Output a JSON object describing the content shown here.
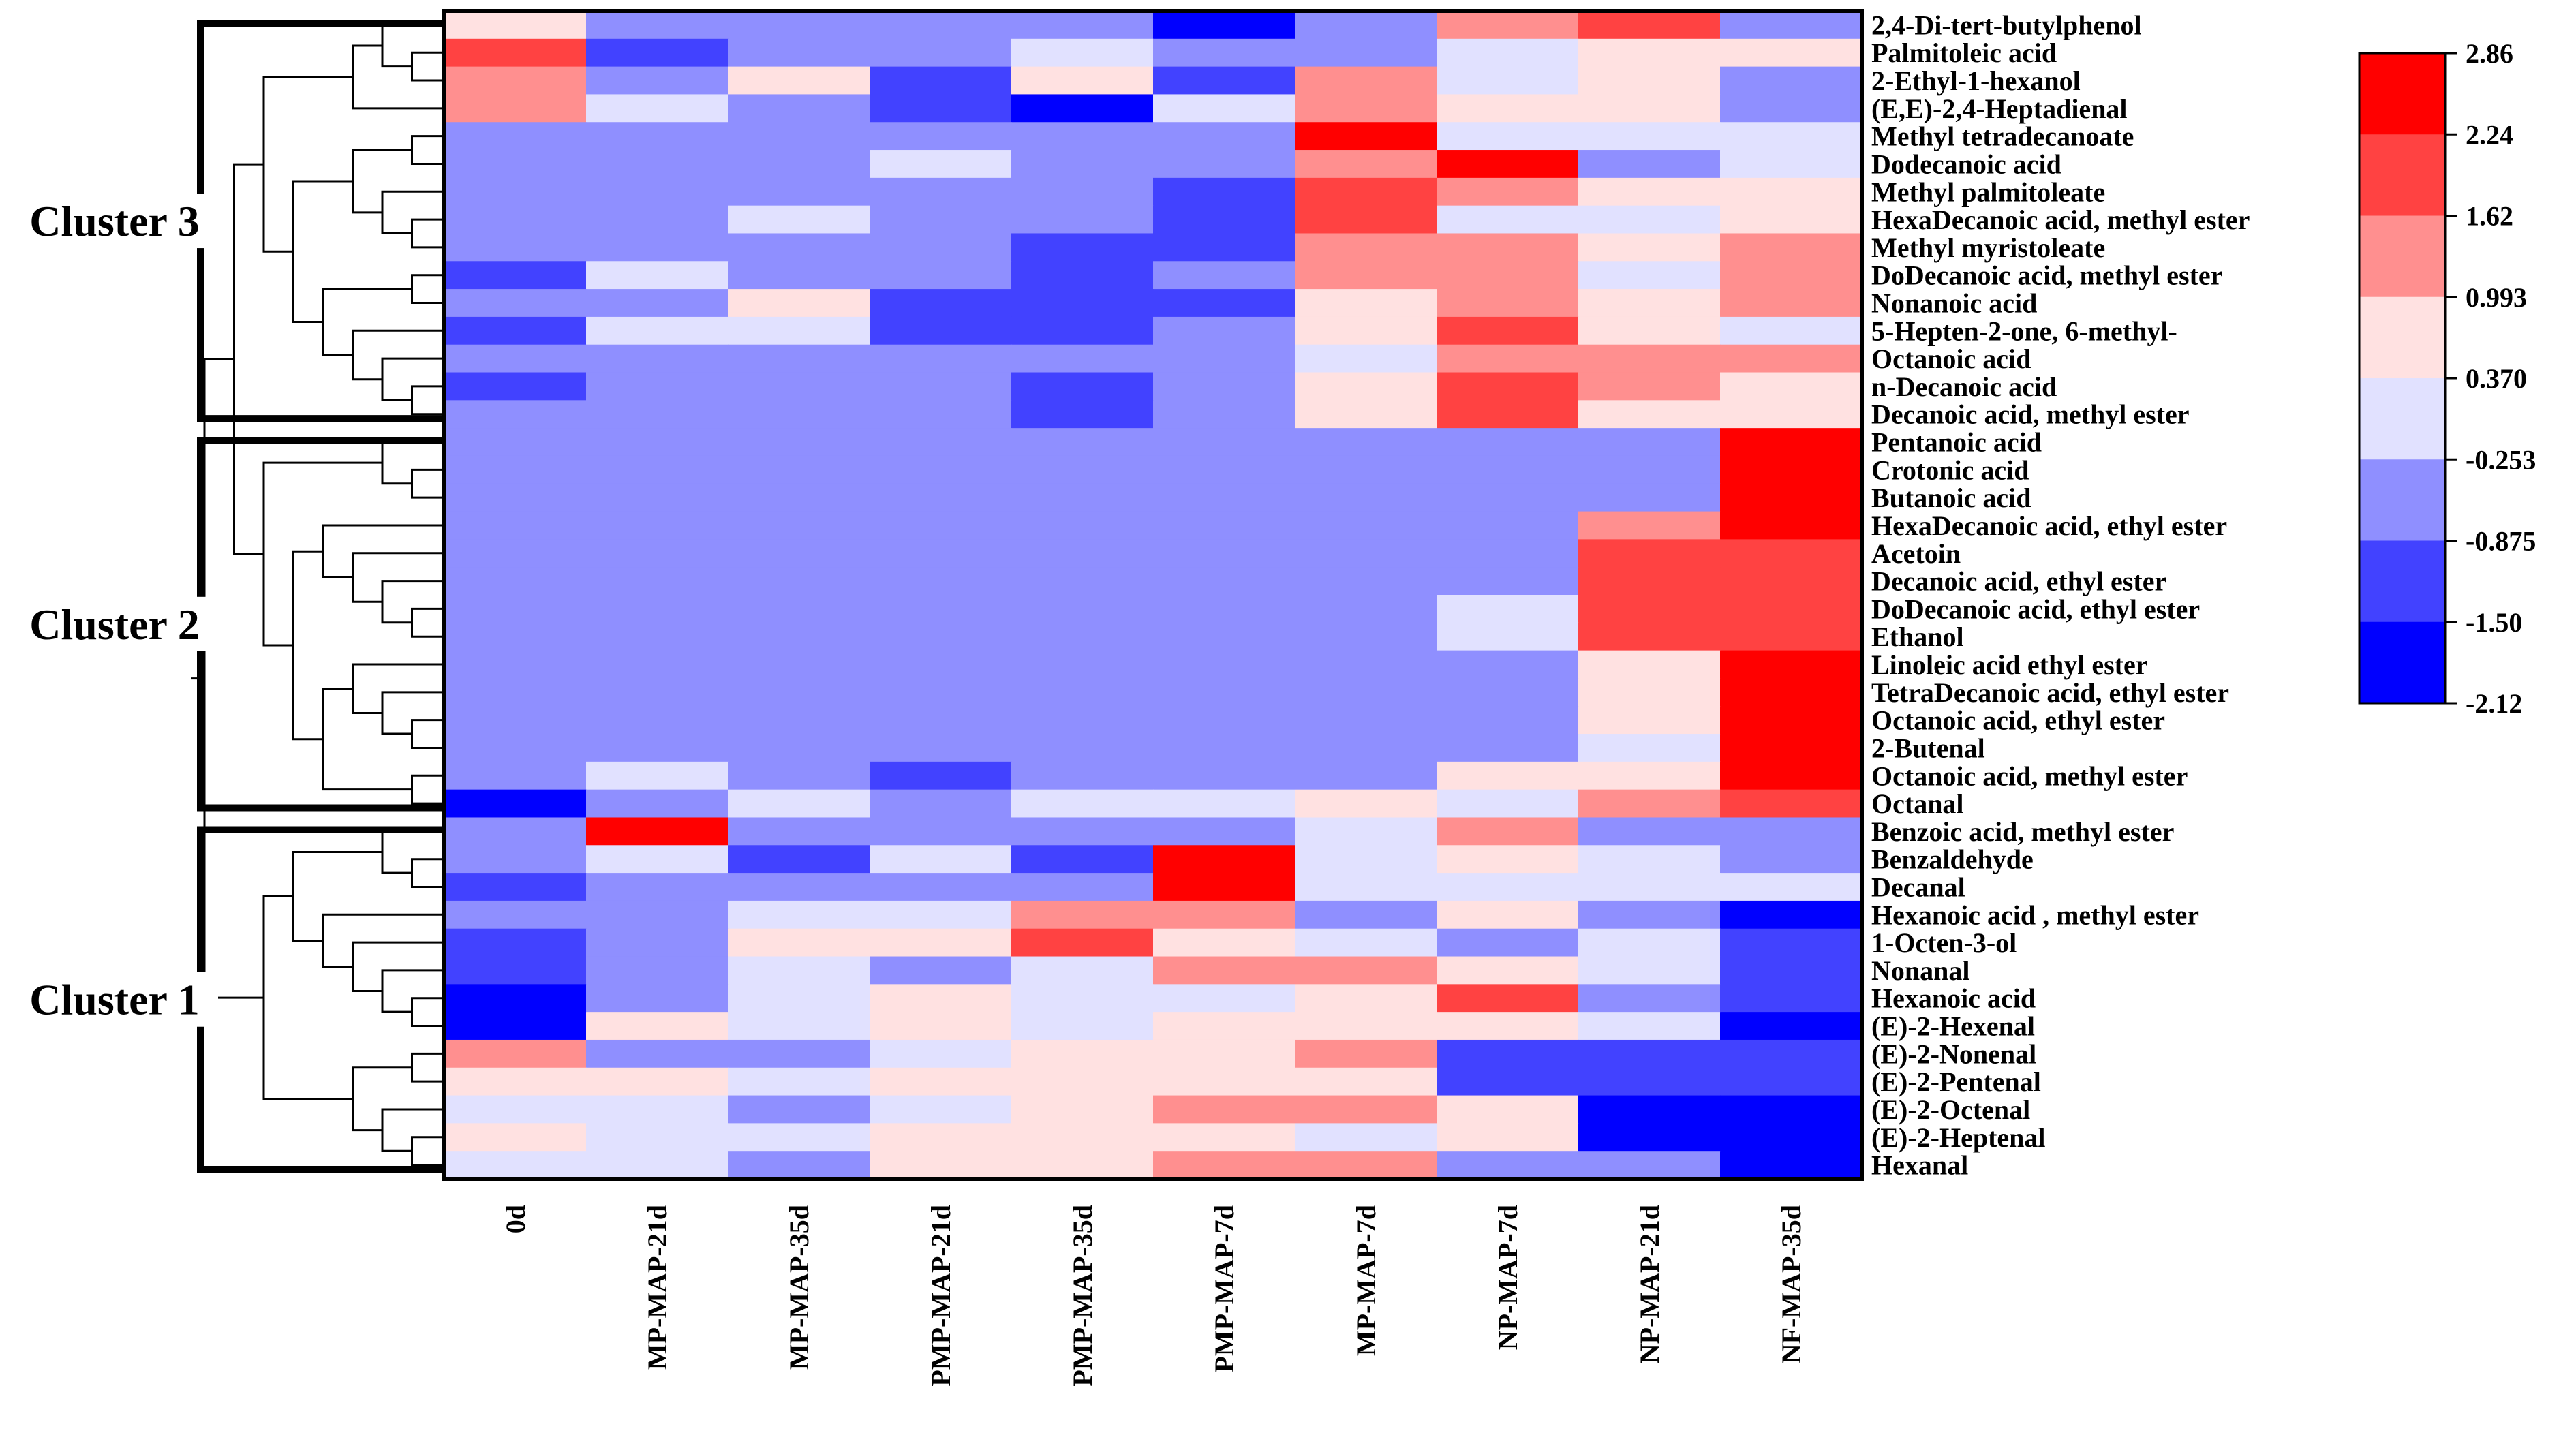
{
  "chart_data": {
    "type": "heatmap",
    "title": "",
    "columns": [
      "0d",
      "MP-MAP-21d",
      "MP-MAP-35d",
      "PMP-MAP-21d",
      "PMP-MAP-35d",
      "PMP-MAP-7d",
      "MP-MAP-7d",
      "NP-MAP-7d",
      "NP-MAP-21d",
      "NF-MAP-35d"
    ],
    "rows": [
      "2,4-Di-tert-butylphenol",
      "Palmitoleic acid",
      "2-Ethyl-1-hexanol",
      "(E,E)-2,4-Heptadienal",
      "Methyl tetradecanoate",
      "Dodecanoic acid",
      "Methyl palmitoleate",
      "HexaDecanoic acid, methyl ester",
      "Methyl myristoleate",
      "DoDecanoic acid, methyl ester",
      "Nonanoic acid",
      "5-Hepten-2-one, 6-methyl-",
      "Octanoic acid",
      "n-Decanoic acid",
      "Decanoic acid, methyl ester",
      "Pentanoic acid",
      "Crotonic acid",
      "Butanoic acid",
      "HexaDecanoic acid, ethyl ester",
      "Acetoin",
      "Decanoic acid, ethyl ester",
      "DoDecanoic acid, ethyl ester",
      "Ethanol",
      "Linoleic acid ethyl ester",
      "TetraDecanoic acid, ethyl ester",
      "Octanoic acid, ethyl ester",
      "2-Butenal",
      "Octanoic acid, methyl ester",
      "Octanal",
      "Benzoic acid, methyl ester",
      "Benzaldehyde",
      "Decanal",
      "Hexanoic acid , methyl ester",
      "1-Octen-3-ol",
      "Nonanal",
      "Hexanoic acid",
      "(E)-2-Hexenal",
      "(E)-2-Nonenal",
      "(E)-2-Pentenal",
      "(E)-2-Octenal",
      "(E)-2-Heptenal",
      "Hexanal"
    ],
    "values": [
      [
        0.68,
        -0.56,
        -0.56,
        -0.56,
        -0.56,
        -1.8,
        -0.56,
        1.3,
        1.9,
        -0.56
      ],
      [
        1.9,
        -1.2,
        -0.56,
        -0.56,
        0.06,
        -0.56,
        -0.56,
        0.06,
        0.68,
        0.68
      ],
      [
        1.3,
        -0.56,
        0.68,
        -1.2,
        0.68,
        -1.2,
        1.3,
        0.06,
        0.68,
        -0.56
      ],
      [
        1.3,
        0.06,
        -0.56,
        -1.2,
        -1.8,
        0.06,
        1.3,
        0.68,
        0.68,
        -0.56
      ],
      [
        -0.56,
        -0.56,
        -0.56,
        -0.56,
        -0.56,
        -0.56,
        2.5,
        0.06,
        0.06,
        0.06
      ],
      [
        -0.56,
        -0.56,
        -0.56,
        0.06,
        -0.56,
        -0.56,
        1.3,
        2.5,
        -0.56,
        0.06
      ],
      [
        -0.56,
        -0.56,
        -0.56,
        -0.56,
        -0.56,
        -1.2,
        1.9,
        1.3,
        0.68,
        0.68
      ],
      [
        -0.56,
        -0.56,
        0.06,
        -0.56,
        -0.56,
        -1.2,
        1.9,
        0.06,
        0.06,
        0.68
      ],
      [
        -0.56,
        -0.56,
        -0.56,
        -0.56,
        -1.2,
        -1.2,
        1.3,
        1.3,
        0.68,
        1.3
      ],
      [
        -1.2,
        0.06,
        -0.56,
        -0.56,
        -1.2,
        -0.56,
        1.3,
        1.3,
        0.06,
        1.3
      ],
      [
        -0.56,
        -0.56,
        0.68,
        -1.2,
        -1.2,
        -1.2,
        0.68,
        1.3,
        0.68,
        1.3
      ],
      [
        -1.2,
        0.06,
        0.06,
        -1.2,
        -1.2,
        -0.56,
        0.68,
        1.9,
        0.68,
        0.06
      ],
      [
        -0.56,
        -0.56,
        -0.56,
        -0.56,
        -0.56,
        -0.56,
        0.06,
        1.3,
        1.3,
        1.3
      ],
      [
        -1.2,
        -0.56,
        -0.56,
        -0.56,
        -1.2,
        -0.56,
        0.68,
        1.9,
        1.3,
        0.68
      ],
      [
        -0.56,
        -0.56,
        -0.56,
        -0.56,
        -1.2,
        -0.56,
        0.68,
        1.9,
        0.68,
        0.68
      ],
      [
        -0.56,
        -0.56,
        -0.56,
        -0.56,
        -0.56,
        -0.56,
        -0.56,
        -0.56,
        -0.56,
        2.5
      ],
      [
        -0.56,
        -0.56,
        -0.56,
        -0.56,
        -0.56,
        -0.56,
        -0.56,
        -0.56,
        -0.56,
        2.5
      ],
      [
        -0.56,
        -0.56,
        -0.56,
        -0.56,
        -0.56,
        -0.56,
        -0.56,
        -0.56,
        -0.56,
        2.5
      ],
      [
        -0.56,
        -0.56,
        -0.56,
        -0.56,
        -0.56,
        -0.56,
        -0.56,
        -0.56,
        1.3,
        2.5
      ],
      [
        -0.56,
        -0.56,
        -0.56,
        -0.56,
        -0.56,
        -0.56,
        -0.56,
        -0.56,
        1.9,
        1.9
      ],
      [
        -0.56,
        -0.56,
        -0.56,
        -0.56,
        -0.56,
        -0.56,
        -0.56,
        -0.56,
        1.9,
        1.9
      ],
      [
        -0.56,
        -0.56,
        -0.56,
        -0.56,
        -0.56,
        -0.56,
        -0.56,
        0.06,
        1.9,
        1.9
      ],
      [
        -0.56,
        -0.56,
        -0.56,
        -0.56,
        -0.56,
        -0.56,
        -0.56,
        0.06,
        1.9,
        1.9
      ],
      [
        -0.56,
        -0.56,
        -0.56,
        -0.56,
        -0.56,
        -0.56,
        -0.56,
        -0.56,
        0.68,
        2.5
      ],
      [
        -0.56,
        -0.56,
        -0.56,
        -0.56,
        -0.56,
        -0.56,
        -0.56,
        -0.56,
        0.68,
        2.5
      ],
      [
        -0.56,
        -0.56,
        -0.56,
        -0.56,
        -0.56,
        -0.56,
        -0.56,
        -0.56,
        0.68,
        2.5
      ],
      [
        -0.56,
        -0.56,
        -0.56,
        -0.56,
        -0.56,
        -0.56,
        -0.56,
        -0.56,
        0.06,
        2.5
      ],
      [
        -0.56,
        0.06,
        -0.56,
        -1.2,
        -0.56,
        -0.56,
        -0.56,
        0.68,
        0.68,
        2.5
      ],
      [
        -1.8,
        -0.56,
        0.06,
        -0.56,
        0.06,
        0.06,
        0.68,
        0.06,
        1.3,
        1.9
      ],
      [
        -0.56,
        2.5,
        -0.56,
        -0.56,
        -0.56,
        -0.56,
        0.06,
        1.3,
        -0.56,
        -0.56
      ],
      [
        -0.56,
        0.06,
        -1.2,
        0.06,
        -1.2,
        2.5,
        0.06,
        0.68,
        0.06,
        -0.56
      ],
      [
        -1.2,
        -0.56,
        -0.56,
        -0.56,
        -0.56,
        2.5,
        0.06,
        0.06,
        0.06,
        0.06
      ],
      [
        -0.56,
        -0.56,
        0.06,
        0.06,
        1.3,
        1.3,
        -0.56,
        0.68,
        -0.56,
        -1.8
      ],
      [
        -1.2,
        -0.56,
        0.68,
        0.68,
        1.9,
        0.68,
        0.06,
        -0.56,
        0.06,
        -1.2
      ],
      [
        -1.2,
        -0.56,
        0.06,
        -0.56,
        0.06,
        1.3,
        1.3,
        0.68,
        0.06,
        -1.2
      ],
      [
        -1.8,
        -0.56,
        0.06,
        0.68,
        0.06,
        0.06,
        0.68,
        1.9,
        -0.56,
        -1.2
      ],
      [
        -1.8,
        0.68,
        0.06,
        0.68,
        0.06,
        0.68,
        0.68,
        0.68,
        0.06,
        -1.8
      ],
      [
        1.3,
        -0.56,
        -0.56,
        0.06,
        0.68,
        0.68,
        1.3,
        -1.2,
        -1.2,
        -1.2
      ],
      [
        0.68,
        0.68,
        0.06,
        0.68,
        0.68,
        0.68,
        0.68,
        -1.2,
        -1.2,
        -1.2
      ],
      [
        0.06,
        0.06,
        -0.56,
        0.06,
        0.68,
        1.3,
        1.3,
        0.68,
        -1.8,
        -1.8
      ],
      [
        0.68,
        0.06,
        0.06,
        0.68,
        0.68,
        0.68,
        0.06,
        0.68,
        -1.8,
        -1.8
      ],
      [
        0.06,
        0.06,
        -0.56,
        0.68,
        0.68,
        1.3,
        1.3,
        -0.56,
        -0.56,
        -1.8
      ]
    ],
    "clusters": [
      {
        "label": "Cluster 3",
        "first_row": 0,
        "last_row": 14
      },
      {
        "label": "Cluster 2",
        "first_row": 15,
        "last_row": 28
      },
      {
        "label": "Cluster 1",
        "first_row": 29,
        "last_row": 41
      }
    ],
    "colorbar": {
      "range": [
        -2.12,
        2.86
      ],
      "ticks": [
        "2.86",
        "2.24",
        "1.62",
        "0.993",
        "0.370",
        "-0.253",
        "-0.875",
        "-1.50",
        "-2.12"
      ],
      "colors": [
        "#ff0000",
        "#ff4242",
        "#ff8f8f",
        "#ffe1e1",
        "#e1e1ff",
        "#8f8fff",
        "#4242ff",
        "#0000ff"
      ]
    }
  }
}
